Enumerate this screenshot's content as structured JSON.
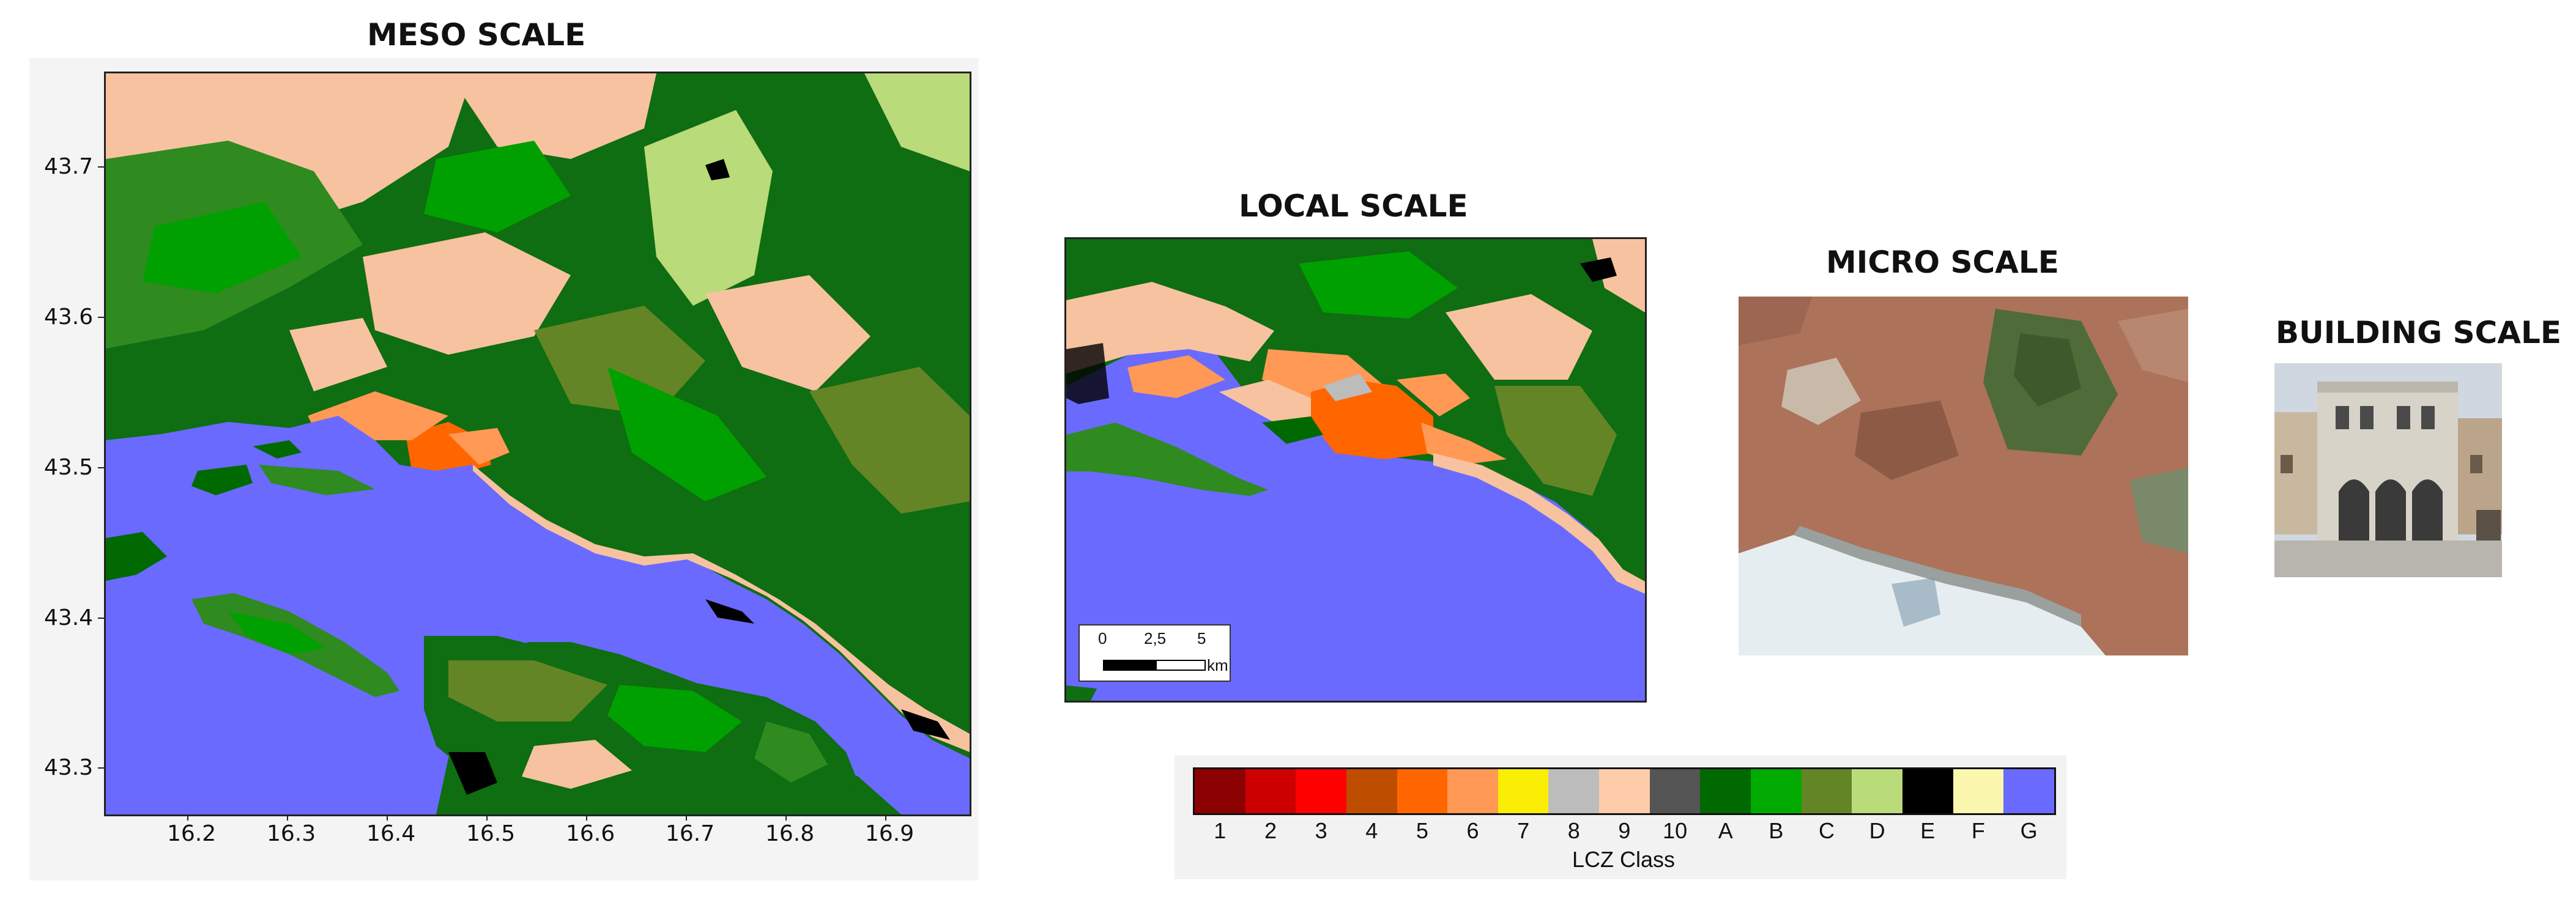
{
  "panels": {
    "meso": {
      "title": "MESO SCALE",
      "y_ticks": [
        "43.7",
        "43.6",
        "43.5",
        "43.4",
        "43.3"
      ],
      "x_ticks": [
        "16.2",
        "16.3",
        "16.4",
        "16.5",
        "16.6",
        "16.7",
        "16.8",
        "16.9"
      ]
    },
    "local": {
      "title": "LOCAL SCALE",
      "scalebar": {
        "labels": [
          "0",
          "2,5",
          "5"
        ],
        "unit": "km"
      }
    },
    "micro": {
      "title": "MICRO SCALE"
    },
    "building": {
      "title": "BUILDING SCALE"
    }
  },
  "legend": {
    "title": "LCZ Class",
    "classes": [
      {
        "label": "1",
        "color": "#8b0000"
      },
      {
        "label": "2",
        "color": "#cc0000"
      },
      {
        "label": "3",
        "color": "#ff0000"
      },
      {
        "label": "4",
        "color": "#bf4d00"
      },
      {
        "label": "5",
        "color": "#ff6600"
      },
      {
        "label": "6",
        "color": "#ff9955"
      },
      {
        "label": "7",
        "color": "#faee05"
      },
      {
        "label": "8",
        "color": "#bcbcbc"
      },
      {
        "label": "9",
        "color": "#ffccaa"
      },
      {
        "label": "10",
        "color": "#555555"
      },
      {
        "label": "A",
        "color": "#006a00"
      },
      {
        "label": "B",
        "color": "#00aa00"
      },
      {
        "label": "C",
        "color": "#648525"
      },
      {
        "label": "D",
        "color": "#b9db79"
      },
      {
        "label": "E",
        "color": "#000000"
      },
      {
        "label": "F",
        "color": "#fbf7ae"
      },
      {
        "label": "G",
        "color": "#6a6aff"
      }
    ]
  }
}
